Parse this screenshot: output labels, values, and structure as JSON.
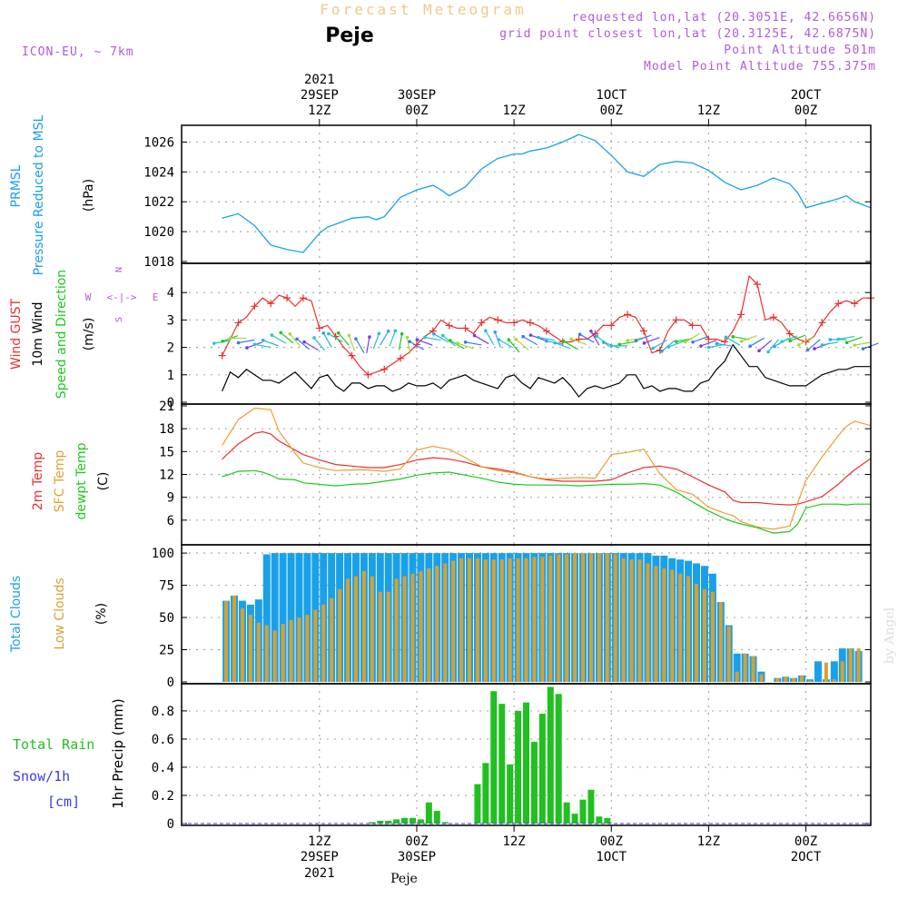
{
  "header": {
    "title": "Forecast Meteogram",
    "location": "Peje",
    "model": "ICON-EU, ~ 7km",
    "requested": "requested lon,lat (20.3051E, 42.6656N)",
    "gridpoint": "grid point closest lon,lat (20.3125E, 42.6875N)",
    "altitude": "Point Altitude 501m",
    "model_altitude": "Model Point Altitude 755.375m",
    "watermark": "by Angel",
    "footer_location": "Peje"
  },
  "time_axis": {
    "top_labels": [
      {
        "h": 12,
        "l1": "2021",
        "l2": "29SEP",
        "l3": "12Z"
      },
      {
        "h": 24,
        "l1": "",
        "l2": "30SEP",
        "l3": "00Z"
      },
      {
        "h": 36,
        "l1": "",
        "l2": "",
        "l3": "12Z"
      },
      {
        "h": 48,
        "l1": "",
        "l2": "1OCT",
        "l3": "00Z"
      },
      {
        "h": 60,
        "l1": "",
        "l2": "",
        "l3": "12Z"
      },
      {
        "h": 72,
        "l1": "",
        "l2": "2OCT",
        "l3": "00Z"
      }
    ],
    "bottom_labels": [
      {
        "h": 12,
        "l1": "12Z",
        "l2": "29SEP",
        "l3": "2021"
      },
      {
        "h": 24,
        "l1": "00Z",
        "l2": "30SEP",
        "l3": ""
      },
      {
        "h": 36,
        "l1": "12Z",
        "l2": "",
        "l3": ""
      },
      {
        "h": 48,
        "l1": "00Z",
        "l2": "1OCT",
        "l3": ""
      },
      {
        "h": 60,
        "l1": "12Z",
        "l2": "",
        "l3": ""
      },
      {
        "h": 72,
        "l1": "00Z",
        "l2": "2OCT",
        "l3": ""
      }
    ]
  },
  "panel_labels": {
    "pressure": [
      {
        "text": "PRMSL",
        "color": "#1aa0e8"
      },
      {
        "text": "Pressure Reduced to MSL",
        "color": "#1aa0e8"
      },
      {
        "text": "(hPa)",
        "color": "#000000"
      }
    ],
    "wind": [
      {
        "text": "Wind GUST",
        "color": "#e83030"
      },
      {
        "text": "10m Wind",
        "color": "#000000"
      },
      {
        "text": "Speed and Direction",
        "color": "#1ec81e"
      },
      {
        "text": "(m/s)",
        "color": "#000000"
      }
    ],
    "compass": {
      "w": "W",
      "e": "E",
      "n": "N",
      "s": "S",
      "arrow_h": "<-|->",
      "color": "#b05ad8"
    },
    "temp": [
      {
        "text": "2m Temp",
        "color": "#e83030"
      },
      {
        "text": "SFC Temp",
        "color": "#e8a030"
      },
      {
        "text": "dewpt Temp",
        "color": "#1ec81e"
      },
      {
        "text": "(C)",
        "color": "#000000"
      }
    ],
    "cloud": [
      {
        "text": "Total Clouds",
        "color": "#1aa0e8"
      },
      {
        "text": "Low Clouds",
        "color": "#d8a030"
      },
      {
        "text": "(%)",
        "color": "#000000"
      }
    ],
    "precip": {
      "total_rain": "Total  Rain",
      "snow": "Snow/1h",
      "unit": "[cm]",
      "axis": "1hr Precip (mm)"
    }
  },
  "colors": {
    "pressure": "#1aa0e8",
    "gust": "#e83030",
    "wind": "#000000",
    "temp2m": "#e83030",
    "sfc": "#e8a030",
    "dew": "#1ec81e",
    "total_cloud": "#1aa0e8",
    "low_cloud": "#d8a030",
    "rain": "#20c020",
    "snow": "#3a3ae8"
  },
  "chart_data": [
    {
      "type": "line",
      "name": "pressure",
      "ylabel": "(hPa)",
      "ylim": [
        1018,
        1027
      ],
      "yticks": [
        1018,
        1020,
        1022,
        1024,
        1026
      ],
      "grid": true,
      "x": [
        0,
        2,
        4,
        6,
        8,
        10,
        12,
        13,
        15,
        16,
        18,
        19,
        20,
        22,
        24,
        26,
        27,
        28,
        30,
        32,
        34,
        36,
        37,
        38,
        40,
        42,
        44,
        46,
        48,
        50,
        52,
        53,
        54,
        56,
        58,
        60,
        62,
        64,
        66,
        68,
        70,
        71,
        72,
        74,
        76,
        77,
        78,
        79,
        80
      ],
      "values": [
        1020.9,
        1021.2,
        1020.4,
        1019.1,
        1018.8,
        1018.6,
        1019.9,
        1020.3,
        1020.7,
        1020.9,
        1021.0,
        1020.8,
        1021.0,
        1022.3,
        1022.8,
        1023.1,
        1022.8,
        1022.4,
        1023.0,
        1024.2,
        1024.9,
        1025.2,
        1025.2,
        1025.4,
        1025.6,
        1026.0,
        1026.5,
        1026.1,
        1025.1,
        1024.0,
        1023.7,
        1024.1,
        1024.5,
        1024.7,
        1024.6,
        1024.1,
        1023.3,
        1022.8,
        1023.1,
        1023.6,
        1023.2,
        1022.6,
        1021.6,
        1021.9,
        1022.2,
        1022.4,
        1022.0,
        1021.8,
        1021.6
      ],
      "note": "x in forecast hours after 29SEP 00Z"
    },
    {
      "type": "line",
      "name": "wind",
      "ylabel": "(m/s)",
      "ylim": [
        0,
        5
      ],
      "yticks": [
        0,
        1,
        2,
        3,
        4
      ],
      "x": [
        0,
        1,
        2,
        3,
        4,
        5,
        6,
        7,
        8,
        9,
        10,
        11,
        12,
        13,
        14,
        15,
        16,
        17,
        18,
        19,
        20,
        21,
        22,
        23,
        24,
        25,
        26,
        27,
        28,
        29,
        30,
        31,
        32,
        33,
        34,
        35,
        36,
        37,
        38,
        39,
        40,
        41,
        42,
        43,
        44,
        45,
        46,
        47,
        48,
        49,
        50,
        51,
        52,
        53,
        54,
        55,
        56,
        57,
        58,
        59,
        60,
        61,
        62,
        63,
        64,
        65,
        66,
        67,
        68,
        69,
        70,
        71,
        72,
        73,
        74,
        75,
        76,
        77,
        78,
        79,
        80
      ],
      "series": [
        {
          "name": "Wind GUST",
          "values": [
            1.7,
            2.3,
            2.9,
            3.1,
            3.5,
            3.8,
            3.6,
            3.9,
            3.8,
            3.5,
            3.8,
            3.7,
            2.7,
            2.8,
            2.4,
            2.0,
            1.7,
            1.3,
            1.0,
            1.1,
            1.2,
            1.4,
            1.6,
            1.8,
            2.1,
            2.4,
            2.6,
            3.0,
            2.8,
            2.7,
            2.7,
            2.5,
            2.9,
            3.1,
            3.0,
            2.9,
            2.9,
            3.0,
            2.9,
            2.8,
            2.6,
            2.4,
            2.2,
            2.2,
            2.3,
            2.3,
            2.5,
            2.8,
            2.8,
            3.1,
            3.2,
            3.1,
            2.6,
            1.8,
            1.9,
            2.6,
            3.0,
            3.0,
            2.8,
            2.8,
            2.3,
            2.3,
            2.2,
            2.6,
            3.2,
            4.6,
            4.3,
            3.0,
            3.1,
            2.9,
            2.5,
            2.3,
            2.2,
            2.4,
            2.9,
            3.3,
            3.6,
            3.7,
            3.6,
            3.8,
            3.8
          ]
        },
        {
          "name": "10m Wind",
          "values": [
            0.4,
            1.1,
            0.9,
            1.2,
            1.0,
            0.8,
            0.8,
            0.7,
            0.9,
            1.1,
            0.8,
            0.5,
            0.9,
            1.0,
            0.6,
            0.4,
            0.7,
            0.7,
            0.5,
            0.6,
            0.6,
            0.4,
            0.5,
            0.7,
            0.6,
            0.6,
            0.7,
            0.5,
            0.8,
            0.9,
            1.0,
            0.8,
            0.7,
            0.6,
            0.5,
            0.9,
            1.0,
            0.7,
            0.5,
            0.9,
            0.8,
            0.7,
            0.9,
            0.6,
            0.2,
            0.5,
            0.6,
            0.5,
            0.6,
            0.7,
            1.0,
            1.0,
            0.5,
            0.6,
            0.4,
            0.5,
            0.5,
            0.4,
            0.4,
            0.7,
            0.8,
            1.2,
            1.5,
            2.1,
            1.7,
            1.3,
            1.3,
            0.9,
            0.8,
            0.7,
            0.6,
            0.6,
            0.6,
            0.8,
            1.0,
            1.1,
            1.2,
            1.2,
            1.3,
            1.3,
            1.3
          ]
        }
      ],
      "arrows_deg": [
        260,
        250,
        270,
        260,
        250,
        280,
        290,
        300,
        310,
        320,
        310,
        300,
        320,
        330,
        300,
        320,
        340,
        330,
        10,
        20,
        30,
        20,
        10,
        350,
        300,
        290,
        280,
        300,
        310,
        300,
        290,
        280,
        300,
        330,
        340,
        300,
        320,
        310,
        300,
        290,
        280,
        280,
        290,
        300,
        290,
        300,
        330,
        310,
        290,
        270,
        260,
        260,
        250,
        250,
        240,
        230,
        250,
        260,
        240,
        250,
        250,
        260,
        280,
        300,
        280,
        250,
        240,
        230,
        220,
        240,
        250,
        250,
        240,
        230,
        250,
        260,
        270,
        260,
        250,
        260,
        250
      ]
    },
    {
      "type": "line",
      "name": "temperature",
      "ylabel": "(C)",
      "ylim": [
        3,
        21
      ],
      "yticks": [
        6,
        9,
        12,
        15,
        18,
        21
      ],
      "x": [
        0,
        2,
        4,
        5,
        6,
        7,
        9,
        10,
        12,
        14,
        16,
        18,
        20,
        22,
        24,
        26,
        28,
        30,
        32,
        34,
        36,
        38,
        40,
        42,
        44,
        46,
        48,
        50,
        52,
        54,
        56,
        58,
        60,
        62,
        63,
        64,
        66,
        68,
        70,
        71,
        72,
        74,
        76,
        77,
        78,
        80
      ],
      "series": [
        {
          "name": "2m Temp",
          "values": [
            14.0,
            16.0,
            17.4,
            17.6,
            17.3,
            16.4,
            15.2,
            14.6,
            13.9,
            13.3,
            13.1,
            12.9,
            12.9,
            13.3,
            13.9,
            14.2,
            14.0,
            13.6,
            13.0,
            12.7,
            12.3,
            11.7,
            11.3,
            11.1,
            11.1,
            11.1,
            11.3,
            12.2,
            12.9,
            13.1,
            12.7,
            11.7,
            10.6,
            9.7,
            8.6,
            8.3,
            8.3,
            8.1,
            8.0,
            8.1,
            8.4,
            9.1,
            10.7,
            11.7,
            12.6,
            14.1
          ]
        },
        {
          "name": "SFC Temp",
          "values": [
            15.8,
            19.2,
            20.7,
            20.6,
            20.5,
            17.7,
            14.8,
            13.5,
            12.9,
            12.5,
            12.6,
            12.6,
            12.4,
            12.7,
            15.2,
            15.7,
            15.3,
            14.2,
            13.0,
            12.5,
            12.2,
            11.7,
            11.4,
            11.5,
            11.6,
            11.5,
            14.6,
            14.9,
            15.3,
            12.1,
            10.0,
            9.4,
            7.7,
            6.9,
            6.6,
            5.8,
            5.1,
            4.8,
            5.2,
            8.3,
            11.2,
            14.3,
            17.1,
            18.3,
            19.0,
            18.4
          ]
        },
        {
          "name": "dewpt Temp",
          "values": [
            11.7,
            12.4,
            12.5,
            12.3,
            11.9,
            11.4,
            11.3,
            10.9,
            10.7,
            10.5,
            10.7,
            10.8,
            11.1,
            11.4,
            11.9,
            12.2,
            12.3,
            11.9,
            11.5,
            11.0,
            10.7,
            10.6,
            10.6,
            10.6,
            10.5,
            10.6,
            10.7,
            10.7,
            10.8,
            10.6,
            9.7,
            8.4,
            7.2,
            6.2,
            5.8,
            5.5,
            5.0,
            4.3,
            4.5,
            5.5,
            7.6,
            8.1,
            8.1,
            8.0,
            8.1,
            8.1
          ]
        }
      ]
    },
    {
      "type": "bar",
      "name": "clouds",
      "ylabel": "(%)",
      "ylim": [
        0,
        105
      ],
      "yticks": [
        0,
        25,
        50,
        75,
        100
      ],
      "x_hours": [
        0,
        1,
        2,
        3,
        4,
        5,
        6,
        7,
        8,
        9,
        10,
        11,
        12,
        13,
        14,
        15,
        16,
        17,
        18,
        19,
        20,
        21,
        22,
        23,
        24,
        25,
        26,
        27,
        28,
        29,
        30,
        31,
        32,
        33,
        34,
        35,
        36,
        37,
        38,
        39,
        40,
        41,
        42,
        43,
        44,
        45,
        46,
        47,
        48,
        49,
        50,
        51,
        52,
        53,
        54,
        55,
        56,
        57,
        58,
        59,
        60,
        61,
        62,
        63,
        64,
        65,
        66,
        67,
        68,
        69,
        70,
        71,
        72,
        73,
        74,
        75,
        76,
        77,
        78
      ],
      "series": [
        {
          "name": "Total Clouds",
          "values": [
            63,
            67,
            63,
            60,
            64,
            99,
            100,
            100,
            100,
            100,
            100,
            100,
            100,
            100,
            100,
            100,
            100,
            100,
            100,
            100,
            100,
            100,
            100,
            100,
            100,
            100,
            100,
            100,
            100,
            100,
            100,
            100,
            100,
            100,
            100,
            100,
            100,
            100,
            100,
            100,
            100,
            100,
            100,
            100,
            100,
            100,
            100,
            100,
            100,
            100,
            100,
            100,
            100,
            98,
            98,
            96,
            95,
            94,
            92,
            90,
            84,
            62,
            44,
            22,
            22,
            20,
            8,
            0,
            3,
            4,
            3,
            5,
            2,
            16,
            2,
            16,
            26,
            26,
            24
          ]
        },
        {
          "name": "Low Clouds",
          "values": [
            63,
            67,
            57,
            52,
            46,
            44,
            40,
            45,
            48,
            50,
            52,
            56,
            60,
            65,
            72,
            80,
            82,
            86,
            82,
            70,
            70,
            80,
            82,
            84,
            86,
            88,
            90,
            92,
            94,
            96,
            96,
            96,
            95,
            95,
            95,
            96,
            96,
            96,
            97,
            97,
            98,
            99,
            99,
            100,
            100,
            100,
            100,
            100,
            99,
            96,
            95,
            95,
            92,
            90,
            88,
            87,
            84,
            82,
            76,
            72,
            70,
            62,
            43,
            8,
            22,
            20,
            6,
            0,
            3,
            4,
            3,
            5,
            1,
            0,
            15,
            2,
            16,
            26,
            26
          ]
        }
      ]
    },
    {
      "type": "bar",
      "name": "precip",
      "ylabel": "1hr Precip (mm)",
      "ylim": [
        0,
        0.98
      ],
      "yticks": [
        0,
        0.2,
        0.4,
        0.6,
        0.8
      ],
      "x_hours": [
        18,
        19,
        20,
        21,
        22,
        23,
        24,
        25,
        26,
        27,
        28,
        29,
        30,
        31,
        32,
        33,
        34,
        35,
        36,
        37,
        38,
        39,
        40,
        41,
        42,
        43,
        44,
        45,
        46,
        47
      ],
      "series": [
        {
          "name": "Total Rain",
          "values": [
            0.01,
            0.02,
            0.02,
            0.03,
            0.04,
            0.04,
            0.03,
            0.15,
            0.09,
            0.01,
            0.0,
            0.0,
            0.0,
            0.28,
            0.43,
            0.94,
            0.85,
            0.42,
            0.8,
            0.86,
            0.58,
            0.78,
            0.97,
            0.92,
            0.15,
            0.07,
            0.17,
            0.24,
            0.05,
            0.04
          ]
        },
        {
          "name": "Snow/1h",
          "values": [
            0,
            0,
            0,
            0,
            0,
            0,
            0,
            0,
            0,
            0,
            0,
            0,
            0,
            0,
            0,
            0,
            0,
            0,
            0,
            0,
            0,
            0,
            0,
            0,
            0,
            0,
            0,
            0,
            0,
            0
          ]
        }
      ]
    }
  ]
}
